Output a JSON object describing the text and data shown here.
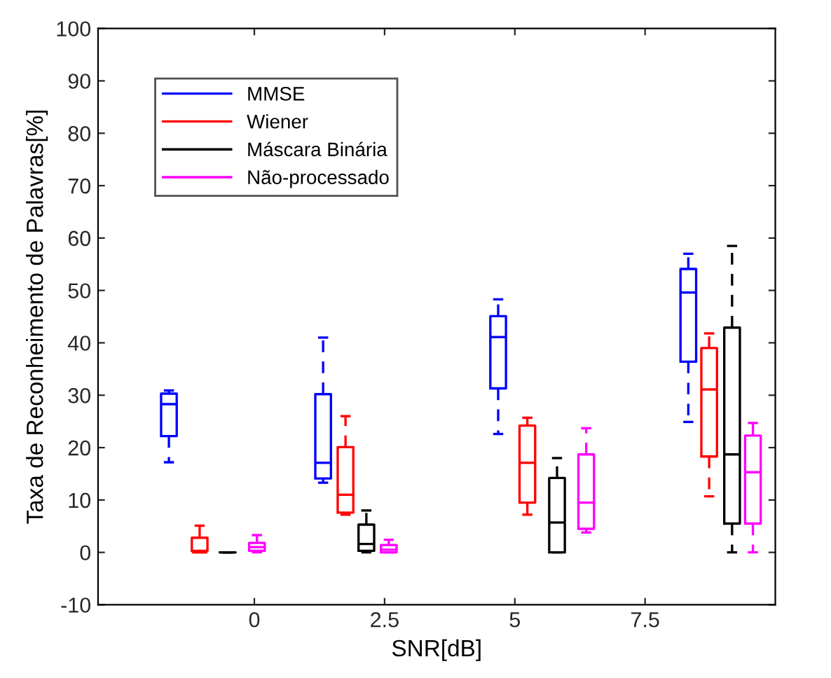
{
  "chart_data": {
    "type": "box",
    "xlabel": "SNR[dB]",
    "ylabel": "Taxa de Reconheimento de Palavras[%]",
    "xlim": [
      -3,
      10
    ],
    "xticks": [
      0,
      2.5,
      5,
      7.5
    ],
    "ylim": [
      -10,
      100
    ],
    "yticks": [
      -10,
      0,
      10,
      20,
      30,
      40,
      50,
      60,
      70,
      80,
      90,
      100
    ],
    "legend": "top left",
    "grid": false,
    "line_style": "dashed",
    "series": [
      {
        "name": "MMSE",
        "color": "#0000ff",
        "x": [
          -1.64,
          1.32,
          4.68,
          8.33
        ],
        "boxes": [
          {
            "low": 17.2,
            "q1": 22.2,
            "median": 28.3,
            "q3": 30.3,
            "high": 30.9
          },
          {
            "low": 13.3,
            "q1": 14.1,
            "median": 17.1,
            "q3": 30.2,
            "high": 41
          },
          {
            "low": 22.6,
            "q1": 31.3,
            "median": 41.1,
            "q3": 45.1,
            "high": 48.3
          },
          {
            "low": 24.9,
            "q1": 36.4,
            "median": 49.6,
            "q3": 54.1,
            "high": 57
          }
        ]
      },
      {
        "name": "Wiener",
        "color": "#ff0000",
        "x": [
          -1.05,
          1.75,
          5.24,
          8.73
        ],
        "boxes": [
          {
            "low": 0,
            "q1": 0.3,
            "median": 0,
            "q3": 2.8,
            "high": 5.1
          },
          {
            "low": 7.2,
            "q1": 7.6,
            "median": 11,
            "q3": 20.1,
            "high": 26
          },
          {
            "low": 7.2,
            "q1": 9.5,
            "median": 17.1,
            "q3": 24.2,
            "high": 25.7
          },
          {
            "low": 10.7,
            "q1": 18.3,
            "median": 31.1,
            "q3": 39,
            "high": 41.8
          }
        ]
      },
      {
        "name": "Máscara Binária",
        "color": "#000000",
        "x": [
          -0.51,
          2.15,
          5.81,
          9.17
        ],
        "boxes": [
          {
            "low": 0,
            "q1": 0,
            "median": 0,
            "q3": 0,
            "high": 0
          },
          {
            "low": 0,
            "q1": 0.3,
            "median": 1.6,
            "q3": 5.3,
            "high": 8
          },
          {
            "low": 0,
            "q1": 0,
            "median": 5.7,
            "q3": 14.2,
            "high": 18
          },
          {
            "low": 0,
            "q1": 5.5,
            "median": 18.7,
            "q3": 42.9,
            "high": 58.5
          }
        ]
      },
      {
        "name": "Não-processado",
        "color": "#ff00ff",
        "x": [
          0.05,
          2.58,
          6.37,
          9.57
        ],
        "boxes": [
          {
            "low": 0,
            "q1": 0.3,
            "median": 1,
            "q3": 1.8,
            "high": 3.3
          },
          {
            "low": 0,
            "q1": 0,
            "median": 0.5,
            "q3": 1.4,
            "high": 2.4
          },
          {
            "low": 3.8,
            "q1": 4.5,
            "median": 9.5,
            "q3": 18.7,
            "high": 23.7
          },
          {
            "low": 0,
            "q1": 5.5,
            "median": 15.3,
            "q3": 22.3,
            "high": 24.7
          }
        ]
      }
    ]
  }
}
